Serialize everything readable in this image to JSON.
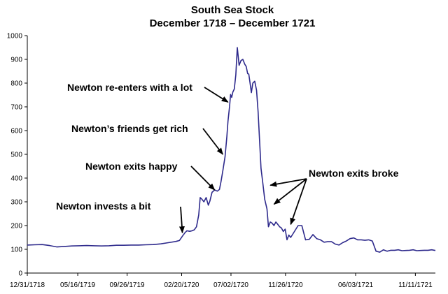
{
  "chart_data": {
    "type": "line",
    "title": "South Sea Stock",
    "subtitle": "December 1718 – December 1721",
    "xlabel": "",
    "ylabel": "",
    "ylim": [
      0,
      1000
    ],
    "yticks": [
      0,
      100,
      200,
      300,
      400,
      500,
      600,
      700,
      800,
      900,
      1000
    ],
    "xlim": [
      0,
      1100
    ],
    "xticks": [
      {
        "label": "12/31/1718",
        "x": 0
      },
      {
        "label": "05/16/1719",
        "x": 136
      },
      {
        "label": "09/26/1719",
        "x": 269
      },
      {
        "label": "02/20/1720",
        "x": 416
      },
      {
        "label": "07/02/1720",
        "x": 549
      },
      {
        "label": "11/26/1720",
        "x": 696
      },
      {
        "label": "06/03/1721",
        "x": 885
      },
      {
        "label": "11/11/1721",
        "x": 1046
      }
    ],
    "series": [
      {
        "name": "South Sea Stock",
        "color": "#2e2a8c",
        "x": [
          0,
          20,
          40,
          60,
          80,
          100,
          120,
          140,
          160,
          180,
          200,
          220,
          240,
          260,
          280,
          300,
          320,
          340,
          360,
          380,
          400,
          410,
          418,
          425,
          430,
          438,
          444,
          450,
          456,
          462,
          466,
          470,
          476,
          482,
          488,
          492,
          498,
          505,
          512,
          518,
          522,
          527,
          533,
          538,
          541,
          545,
          548,
          551,
          554,
          558,
          562,
          566,
          571,
          576,
          581,
          586,
          590,
          594,
          597,
          600,
          604,
          608,
          613,
          618,
          622,
          626,
          630,
          634,
          640,
          646,
          650,
          655,
          660,
          665,
          670,
          675,
          680,
          685,
          690,
          695,
          700,
          705,
          710,
          720,
          730,
          740,
          750,
          760,
          770,
          780,
          790,
          800,
          810,
          820,
          830,
          840,
          850,
          860,
          870,
          880,
          890,
          900,
          910,
          920,
          930,
          940,
          950,
          960,
          970,
          980,
          990,
          1000,
          1010,
          1020,
          1030,
          1040,
          1050,
          1060,
          1070,
          1080,
          1090,
          1100
        ],
        "values": [
          118,
          119,
          120,
          116,
          110,
          112,
          114,
          115,
          116,
          115,
          114,
          115,
          117,
          117,
          118,
          118,
          119,
          120,
          123,
          128,
          133,
          137,
          155,
          170,
          178,
          176,
          178,
          182,
          195,
          245,
          318,
          312,
          300,
          318,
          286,
          303,
          340,
          350,
          345,
          352,
          385,
          430,
          490,
          575,
          640,
          700,
          752,
          740,
          762,
          775,
          835,
          950,
          875,
          895,
          900,
          880,
          870,
          840,
          838,
          805,
          760,
          800,
          808,
          770,
          680,
          560,
          440,
          390,
          310,
          270,
          195,
          215,
          210,
          200,
          215,
          205,
          195,
          190,
          175,
          185,
          140,
          160,
          150,
          175,
          200,
          200,
          140,
          142,
          162,
          145,
          140,
          130,
          132,
          132,
          122,
          118,
          128,
          135,
          145,
          148,
          140,
          140,
          138,
          140,
          135,
          92,
          88,
          98,
          92,
          96,
          96,
          98,
          94,
          95,
          96,
          98,
          94,
          95,
          96,
          96,
          98,
          95
        ]
      }
    ],
    "annotations": [
      {
        "text": "Newton invests a bit",
        "target_x": 418,
        "target_y": 170
      },
      {
        "text": "Newton exits happy",
        "target_x": 505,
        "target_y": 350
      },
      {
        "text": "Newton’s friends get rich",
        "target_x": 527,
        "target_y": 500
      },
      {
        "text": "Newton re-enters with a lot",
        "target_x": 541,
        "target_y": 720
      },
      {
        "text": "Newton exits broke",
        "targets": [
          {
            "target_x": 655,
            "target_y": 370
          },
          {
            "target_x": 665,
            "target_y": 290
          },
          {
            "target_x": 710,
            "target_y": 205
          }
        ]
      }
    ]
  }
}
